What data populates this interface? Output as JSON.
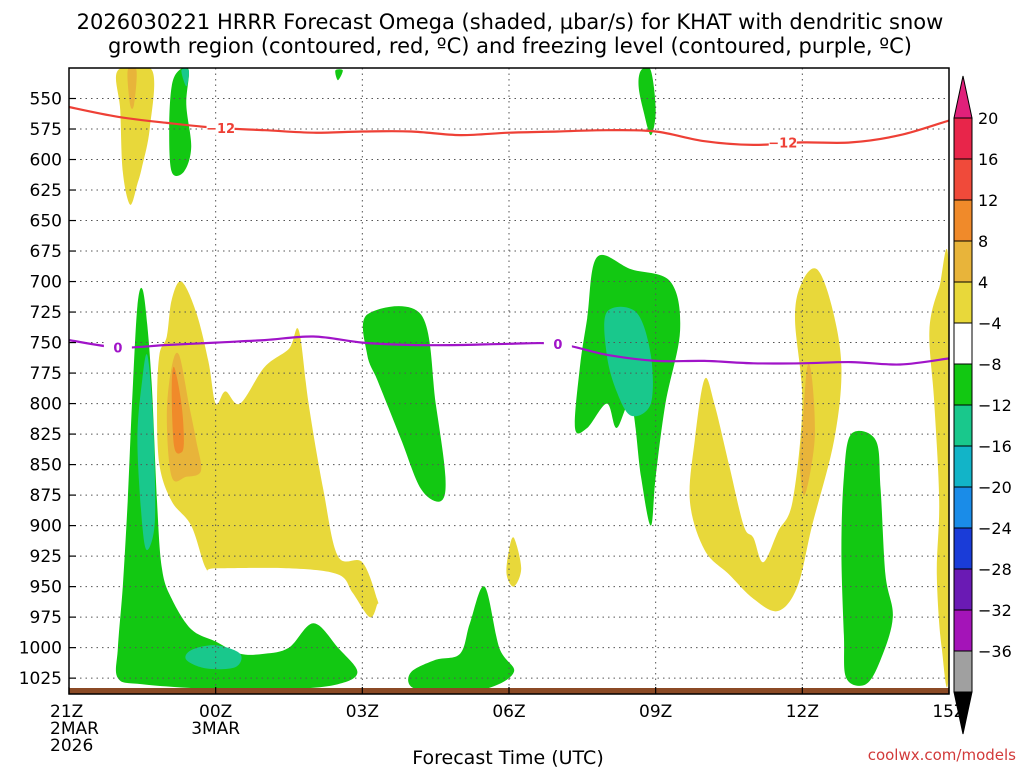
{
  "chart_data": {
    "type": "contour",
    "title_line1": "2026030221 HRRR Forecast Omega (shaded, µbar/s) for KHAT with dendritic snow",
    "title_line2": "growth region (contoured, red, ºC) and freezing level (contoured, purple, ºC)",
    "xlabel": "Forecast Time (UTC)",
    "credit": "coolwx.com/models",
    "xlim": [
      0,
      18
    ],
    "ylim": [
      1038,
      525
    ],
    "y_ticks": [
      550,
      575,
      600,
      625,
      650,
      675,
      700,
      725,
      750,
      775,
      800,
      825,
      850,
      875,
      900,
      925,
      950,
      975,
      1000,
      1025
    ],
    "x_ticks": [
      {
        "hour": 0,
        "line1": "21Z",
        "line2": "2MAR",
        "line3": "2026"
      },
      {
        "hour": 3,
        "line1": "00Z",
        "line2": "3MAR",
        "line3": ""
      },
      {
        "hour": 6,
        "line1": "03Z",
        "line2": "",
        "line3": ""
      },
      {
        "hour": 9,
        "line1": "06Z",
        "line2": "",
        "line3": ""
      },
      {
        "hour": 12,
        "line1": "09Z",
        "line2": "",
        "line3": ""
      },
      {
        "hour": 15,
        "line1": "12Z",
        "line2": "",
        "line3": ""
      },
      {
        "hour": 18,
        "line1": "15Z",
        "line2": "",
        "line3": ""
      }
    ],
    "colorbar": {
      "labels": [
        "20",
        "16",
        "12",
        "8",
        "4",
        "−4",
        "−8",
        "−12",
        "−16",
        "−20",
        "−24",
        "−28",
        "−32",
        "−36"
      ],
      "colors": [
        "#e8254a",
        "#f04a3a",
        "#f08a2a",
        "#e8b43a",
        "#e8d83a",
        "#ffffff",
        "#12c812",
        "#19c88c",
        "#12b4c8",
        "#1a8ce8",
        "#1a3cd8",
        "#6a1ab4",
        "#a414b8",
        "#a0a0a0"
      ],
      "top_color": "#e0207a",
      "bottom_color": "#000000"
    },
    "dgz_level": {
      "value": -12,
      "label": "−12",
      "color": "#ee4036",
      "points": [
        [
          0,
          557
        ],
        [
          1,
          565
        ],
        [
          2,
          570
        ],
        [
          3,
          574
        ],
        [
          4,
          576
        ],
        [
          5,
          578
        ],
        [
          6,
          577
        ],
        [
          7,
          577
        ],
        [
          8,
          580
        ],
        [
          9,
          578
        ],
        [
          10,
          577
        ],
        [
          11,
          576
        ],
        [
          12,
          577
        ],
        [
          13,
          585
        ],
        [
          14,
          588
        ],
        [
          15,
          586
        ],
        [
          16,
          586
        ],
        [
          17,
          580
        ],
        [
          18,
          568
        ]
      ]
    },
    "freezing_level": {
      "value": 0,
      "label": "0",
      "color": "#a014c8",
      "points": [
        [
          0,
          748
        ],
        [
          1,
          754
        ],
        [
          2,
          752
        ],
        [
          3,
          750
        ],
        [
          4,
          748
        ],
        [
          5,
          745
        ],
        [
          6,
          750
        ],
        [
          7,
          752
        ],
        [
          8,
          752
        ],
        [
          9,
          751
        ],
        [
          10,
          751
        ],
        [
          11,
          760
        ],
        [
          12,
          765
        ],
        [
          13,
          765
        ],
        [
          14,
          767
        ],
        [
          15,
          767
        ],
        [
          16,
          766
        ],
        [
          17,
          768
        ],
        [
          18,
          763
        ]
      ]
    },
    "shaded_regions": [
      {
        "name": "omega-upward-4",
        "level": "-4 to -8",
        "color": "#12c812",
        "points": [
          [
            1.0,
            1000
          ],
          [
            1.1,
            950
          ],
          [
            1.2,
            880
          ],
          [
            1.3,
            790
          ],
          [
            1.4,
            720
          ],
          [
            1.5,
            706
          ],
          [
            1.6,
            735
          ],
          [
            1.7,
            790
          ],
          [
            1.8,
            880
          ],
          [
            1.9,
            935
          ],
          [
            2.1,
            960
          ],
          [
            2.5,
            985
          ],
          [
            3.0,
            995
          ],
          [
            3.5,
            1005
          ],
          [
            4.0,
            1005
          ],
          [
            4.5,
            1000
          ],
          [
            5.0,
            980
          ],
          [
            5.5,
            1000
          ],
          [
            5.9,
            1020
          ],
          [
            5.5,
            1030
          ],
          [
            4.5,
            1034
          ],
          [
            3.0,
            1034
          ],
          [
            1.5,
            1030
          ],
          [
            1.0,
            1025
          ]
        ]
      },
      {
        "name": "omega-upward-8",
        "level": "-8 to -12",
        "color": "#19c88c",
        "points": [
          [
            1.4,
            830
          ],
          [
            1.5,
            780
          ],
          [
            1.6,
            760
          ],
          [
            1.7,
            800
          ],
          [
            1.75,
            850
          ],
          [
            1.75,
            900
          ],
          [
            1.6,
            920
          ],
          [
            1.5,
            900
          ]
        ]
      },
      {
        "name": "omega-upward-8b",
        "level": "-8 to -12",
        "color": "#19c88c",
        "points": [
          [
            2.5,
            1002
          ],
          [
            3.0,
            998
          ],
          [
            3.5,
            1005
          ],
          [
            3.4,
            1016
          ],
          [
            2.8,
            1017
          ],
          [
            2.4,
            1010
          ]
        ]
      },
      {
        "name": "omega-upward-4",
        "level": "-4 to -8",
        "color": "#12c812",
        "points": [
          [
            2.25,
            527
          ],
          [
            2.45,
            527
          ],
          [
            2.4,
            555
          ],
          [
            2.5,
            590
          ],
          [
            2.35,
            610
          ],
          [
            2.1,
            610
          ],
          [
            2.05,
            575
          ],
          [
            2.1,
            540
          ]
        ]
      },
      {
        "name": "omega-upward-8",
        "level": "-8 to -12",
        "color": "#19c88c",
        "points": [
          [
            2.3,
            527
          ],
          [
            2.45,
            527
          ],
          [
            2.4,
            540
          ]
        ]
      },
      {
        "name": "omega-upward-4",
        "level": "-4 to -8",
        "color": "#12c812",
        "points": [
          [
            5.45,
            527
          ],
          [
            5.6,
            527
          ],
          [
            5.5,
            535
          ]
        ]
      },
      {
        "name": "omega-upward-4",
        "level": "-4 to -8",
        "color": "#12c812",
        "points": [
          [
            6.1,
            727
          ],
          [
            7.2,
            727
          ],
          [
            7.5,
            800
          ],
          [
            7.7,
            860
          ],
          [
            7.6,
            880
          ],
          [
            7.2,
            870
          ],
          [
            6.8,
            830
          ],
          [
            6.5,
            800
          ],
          [
            6.3,
            780
          ],
          [
            6.1,
            760
          ]
        ]
      },
      {
        "name": "omega-upward-4",
        "level": "-4 to -8",
        "color": "#12c812",
        "points": [
          [
            7.0,
            1020
          ],
          [
            7.5,
            1010
          ],
          [
            8.0,
            1005
          ],
          [
            8.2,
            980
          ],
          [
            8.5,
            950
          ],
          [
            8.8,
            1000
          ],
          [
            9.1,
            1020
          ],
          [
            8.5,
            1034
          ],
          [
            7.5,
            1036
          ],
          [
            7.0,
            1032
          ]
        ]
      },
      {
        "name": "omega-upward-4",
        "level": "-4 to -8",
        "color": "#12c812",
        "points": [
          [
            11.7,
            527
          ],
          [
            11.9,
            527
          ],
          [
            12.0,
            560
          ],
          [
            11.9,
            580
          ],
          [
            11.75,
            560
          ],
          [
            11.65,
            540
          ]
        ]
      },
      {
        "name": "omega-upward-4",
        "level": "-4 to -8",
        "color": "#12c812",
        "points": [
          [
            10.8,
            680
          ],
          [
            11.5,
            690
          ],
          [
            12.3,
            700
          ],
          [
            12.5,
            740
          ],
          [
            12.2,
            800
          ],
          [
            12.0,
            860
          ],
          [
            11.9,
            900
          ],
          [
            11.7,
            860
          ],
          [
            11.5,
            800
          ],
          [
            11.2,
            820
          ],
          [
            11.0,
            800
          ],
          [
            10.6,
            820
          ],
          [
            10.35,
            820
          ],
          [
            10.45,
            770
          ],
          [
            10.6,
            730
          ]
        ]
      },
      {
        "name": "omega-upward-8",
        "level": "-8 to -12",
        "color": "#19c88c",
        "points": [
          [
            11.0,
            725
          ],
          [
            11.6,
            725
          ],
          [
            11.9,
            760
          ],
          [
            11.9,
            800
          ],
          [
            11.5,
            810
          ],
          [
            11.2,
            790
          ],
          [
            11.0,
            760
          ]
        ]
      },
      {
        "name": "omega-upward-4",
        "level": "-4 to -8",
        "color": "#12c812",
        "points": [
          [
            16.0,
            825
          ],
          [
            16.5,
            830
          ],
          [
            16.6,
            870
          ],
          [
            16.7,
            940
          ],
          [
            16.85,
            975
          ],
          [
            16.6,
            1010
          ],
          [
            16.3,
            1030
          ],
          [
            15.9,
            1025
          ],
          [
            15.85,
            990
          ],
          [
            15.8,
            920
          ],
          [
            15.85,
            860
          ]
        ]
      },
      {
        "name": "omega-downward-4",
        "level": "4 to 8",
        "color": "#e8d83a",
        "points": [
          [
            1.0,
            527
          ],
          [
            1.7,
            527
          ],
          [
            1.65,
            575
          ],
          [
            1.5,
            605
          ],
          [
            1.4,
            620
          ],
          [
            1.25,
            637
          ],
          [
            1.1,
            610
          ],
          [
            1.05,
            560
          ]
        ]
      },
      {
        "name": "omega-downward-8",
        "level": "8 to 12",
        "color": "#e8b43a",
        "points": [
          [
            1.2,
            527
          ],
          [
            1.38,
            527
          ],
          [
            1.33,
            555
          ],
          [
            1.25,
            555
          ]
        ]
      },
      {
        "name": "omega-downward-4",
        "level": "4 to 8",
        "color": "#e8d83a",
        "points": [
          [
            2.0,
            745
          ],
          [
            2.1,
            715
          ],
          [
            2.3,
            700
          ],
          [
            2.6,
            725
          ],
          [
            2.85,
            765
          ],
          [
            3.0,
            800
          ],
          [
            3.2,
            790
          ],
          [
            3.5,
            800
          ],
          [
            4.0,
            770
          ],
          [
            4.5,
            755
          ],
          [
            4.7,
            740
          ],
          [
            4.9,
            800
          ],
          [
            5.2,
            870
          ],
          [
            5.5,
            925
          ],
          [
            6.0,
            930
          ],
          [
            6.3,
            960
          ],
          [
            6.3,
            965
          ],
          [
            6.15,
            975
          ],
          [
            5.8,
            955
          ],
          [
            5.5,
            940
          ],
          [
            4.5,
            935
          ],
          [
            3.0,
            935
          ],
          [
            2.8,
            935
          ],
          [
            2.5,
            900
          ],
          [
            2.1,
            880
          ],
          [
            1.85,
            850
          ],
          [
            1.8,
            800
          ],
          [
            1.85,
            760
          ]
        ]
      },
      {
        "name": "omega-downward-8",
        "level": "8 to 12",
        "color": "#e8b43a",
        "points": [
          [
            2.0,
            810
          ],
          [
            2.1,
            770
          ],
          [
            2.25,
            760
          ],
          [
            2.45,
            800
          ],
          [
            2.6,
            830
          ],
          [
            2.7,
            855
          ],
          [
            2.4,
            860
          ],
          [
            2.1,
            860
          ]
        ]
      },
      {
        "name": "omega-downward-12",
        "level": "12 to 16",
        "color": "#f08a2a",
        "points": [
          [
            2.1,
            790
          ],
          [
            2.15,
            770
          ],
          [
            2.3,
            800
          ],
          [
            2.35,
            830
          ],
          [
            2.3,
            840
          ],
          [
            2.15,
            835
          ]
        ]
      },
      {
        "name": "omega-downward-4",
        "level": "4 to 8",
        "color": "#e8d83a",
        "points": [
          [
            9.0,
            920
          ],
          [
            9.1,
            910
          ],
          [
            9.25,
            935
          ],
          [
            9.1,
            950
          ],
          [
            8.95,
            940
          ]
        ]
      },
      {
        "name": "omega-downward-4",
        "level": "4 to 8",
        "color": "#e8d83a",
        "points": [
          [
            12.8,
            830
          ],
          [
            13.0,
            780
          ],
          [
            13.2,
            800
          ],
          [
            13.5,
            850
          ],
          [
            13.8,
            900
          ],
          [
            14.0,
            910
          ],
          [
            14.2,
            930
          ],
          [
            14.5,
            905
          ],
          [
            14.8,
            880
          ],
          [
            15.0,
            800
          ],
          [
            14.85,
            730
          ],
          [
            15.0,
            700
          ],
          [
            15.3,
            690
          ],
          [
            15.6,
            720
          ],
          [
            15.8,
            770
          ],
          [
            15.65,
            830
          ],
          [
            15.2,
            900
          ],
          [
            14.9,
            950
          ],
          [
            14.5,
            970
          ],
          [
            14.0,
            960
          ],
          [
            13.5,
            940
          ],
          [
            13.0,
            920
          ],
          [
            12.7,
            880
          ]
        ]
      },
      {
        "name": "omega-downward-8",
        "level": "8 to 12",
        "color": "#e8b43a",
        "points": [
          [
            15.0,
            820
          ],
          [
            15.1,
            770
          ],
          [
            15.2,
            780
          ],
          [
            15.25,
            830
          ],
          [
            15.05,
            875
          ],
          [
            14.95,
            850
          ]
        ]
      },
      {
        "name": "omega-downward-4",
        "level": "4 to 8",
        "color": "#e8d83a",
        "points": [
          [
            17.6,
            740
          ],
          [
            17.8,
            705
          ],
          [
            18.0,
            695
          ],
          [
            18.0,
            1010
          ],
          [
            17.85,
            1000
          ],
          [
            17.75,
            940
          ],
          [
            17.8,
            880
          ],
          [
            17.7,
            800
          ]
        ]
      }
    ]
  }
}
